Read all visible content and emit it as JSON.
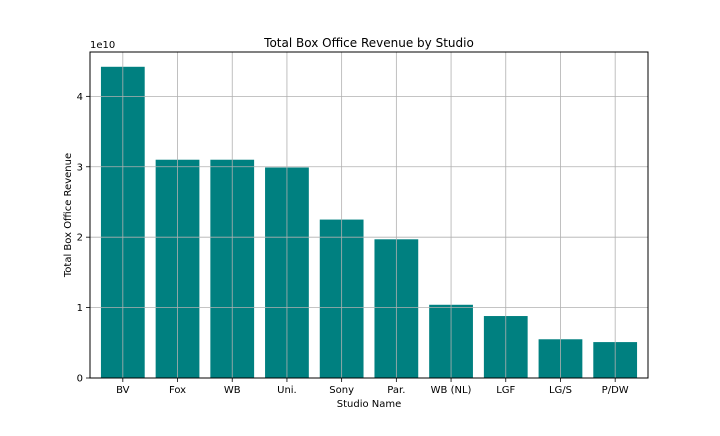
{
  "chart_data": {
    "type": "bar",
    "title": "Total Box Office Revenue by Studio",
    "xlabel": "Studio Name",
    "ylabel": "Total Box Office Revenue",
    "y_multiplier": "1e10",
    "categories": [
      "BV",
      "Fox",
      "WB",
      "Uni.",
      "Sony",
      "Par.",
      "WB (NL)",
      "LGF",
      "LG/S",
      "P/DW"
    ],
    "values": [
      44200000000,
      31000000000,
      31000000000,
      29900000000,
      22500000000,
      19700000000,
      10400000000,
      8800000000,
      5500000000,
      5100000000
    ],
    "ylim": [
      0,
      46300000000
    ],
    "yticks": [
      0,
      1,
      2,
      3,
      4
    ],
    "grid": true,
    "bar_color": "#008080"
  }
}
